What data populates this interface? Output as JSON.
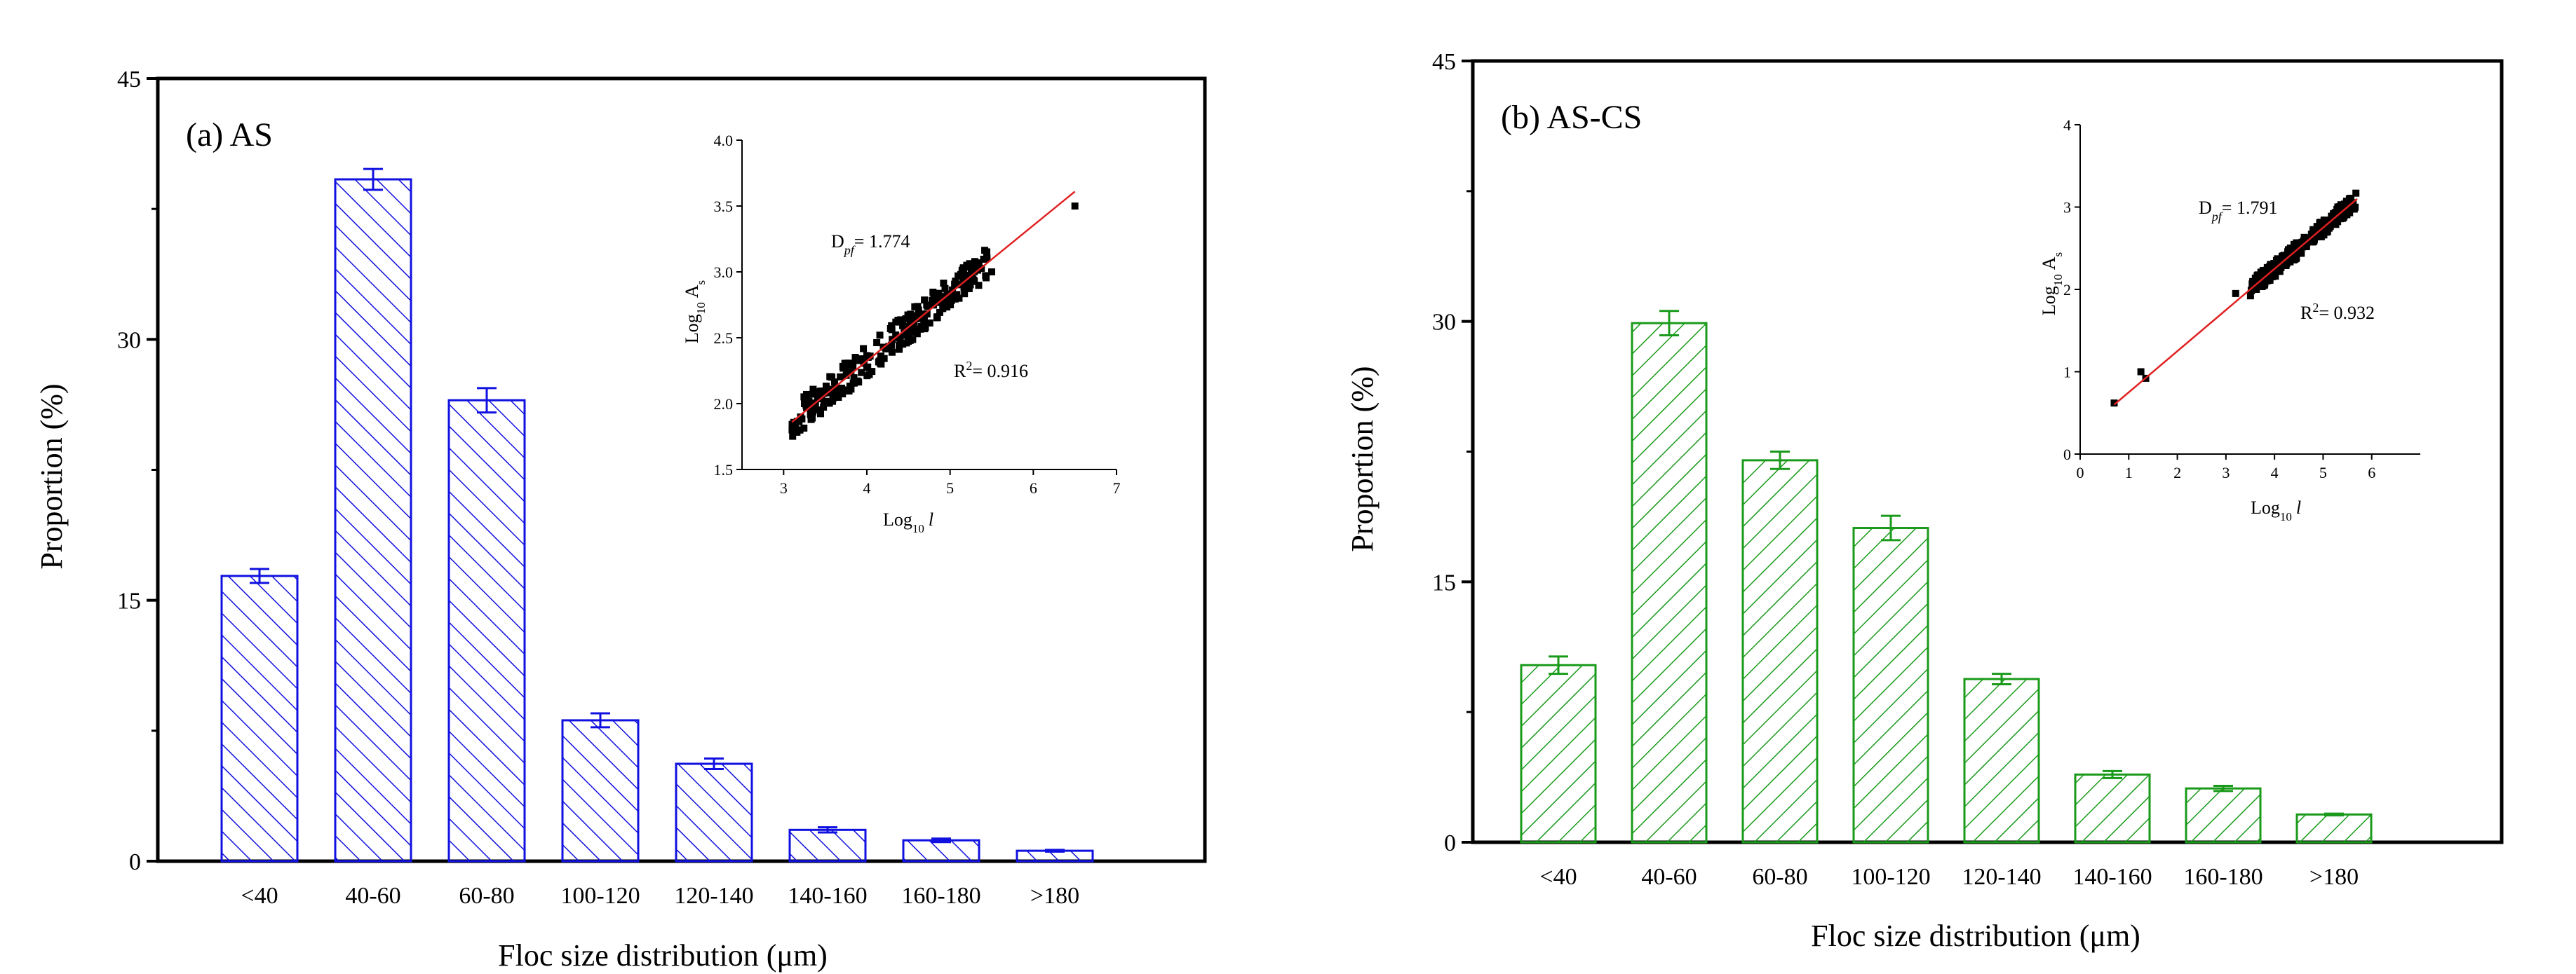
{
  "chart_data": [
    {
      "type": "bar",
      "panel_label": "(a) AS",
      "xlabel": "Floc size distribution (μm)",
      "ylabel": "Proportion (%)",
      "categories": [
        "<40",
        "40-60",
        "60-80",
        "100-120",
        "120-140",
        "140-160",
        "160-180",
        ">180"
      ],
      "values": [
        16.4,
        39.2,
        26.5,
        8.1,
        5.6,
        1.8,
        1.2,
        0.6
      ],
      "errors": [
        0.4,
        0.6,
        0.7,
        0.4,
        0.3,
        0.15,
        0.1,
        0.05
      ],
      "ylim": [
        0,
        45
      ],
      "yticks": [
        0,
        15,
        30,
        45
      ],
      "color": "#1010e0",
      "hatch": "forward",
      "inset": {
        "type": "scatter",
        "xlabel_base": "Log",
        "xlabel_sub": "10",
        "xlabel_var": "l",
        "ylabel_base": "Log",
        "ylabel_sub": "10",
        "ylabel_var": "A",
        "ylabel_var_sub": "s",
        "xlim": [
          2.5,
          7
        ],
        "ylim": [
          1.5,
          4.0
        ],
        "xticks": [
          "3",
          "4",
          "5",
          "6",
          "7"
        ],
        "yticks": [
          "1.5",
          "2.0",
          "2.5",
          "3.0",
          "3.5",
          "4.0"
        ],
        "fit_line": {
          "x": [
            3.1,
            6.5
          ],
          "y": [
            1.86,
            3.61
          ]
        },
        "cluster": {
          "x_range": [
            3.1,
            5.45
          ],
          "spread": 0.12
        },
        "outliers": [
          [
            6.5,
            3.5
          ],
          [
            5.5,
            3.0
          ],
          [
            5.2,
            3.05
          ]
        ],
        "df_label": "D",
        "df_sub": "pf",
        "df_value": "= 1.774",
        "r2_label": "R",
        "r2_sup": "2",
        "r2_value": "= 0.916",
        "line_color": "#e02020"
      }
    },
    {
      "type": "bar",
      "panel_label": "(b) AS-CS",
      "xlabel": "Floc size distribution (μm)",
      "ylabel": "Proportion (%)",
      "categories": [
        "<40",
        "40-60",
        "60-80",
        "100-120",
        "120-140",
        "140-160",
        "160-180",
        ">180"
      ],
      "values": [
        10.2,
        29.9,
        22.0,
        18.1,
        9.4,
        3.9,
        3.1,
        1.6
      ],
      "errors": [
        0.5,
        0.7,
        0.5,
        0.7,
        0.3,
        0.2,
        0.15,
        0.05
      ],
      "ylim": [
        0,
        45
      ],
      "yticks": [
        0,
        15,
        30,
        45
      ],
      "color": "#1a9a1a",
      "hatch": "backward",
      "inset": {
        "type": "scatter",
        "xlabel_base": "Log",
        "xlabel_sub": "10",
        "xlabel_var": "l",
        "ylabel_base": "Log",
        "ylabel_sub": "10",
        "ylabel_var": "A",
        "ylabel_var_sub": "s",
        "xlim": [
          0,
          7
        ],
        "ylim": [
          0,
          4
        ],
        "xticks": [
          "0",
          "1",
          "2",
          "3",
          "4",
          "5",
          "6"
        ],
        "yticks": [
          "0",
          "1",
          "2",
          "3",
          "4"
        ],
        "fit_line": {
          "x": [
            0.7,
            5.7
          ],
          "y": [
            0.6,
            3.1
          ]
        },
        "cluster": {
          "x_range": [
            3.5,
            5.7
          ],
          "spread": 0.1
        },
        "outliers": [
          [
            0.7,
            0.62
          ],
          [
            1.25,
            1.0
          ],
          [
            1.35,
            0.92
          ],
          [
            3.2,
            1.95
          ]
        ],
        "df_label": "D",
        "df_sub": "pf",
        "df_value": "= 1.791",
        "r2_label": "R",
        "r2_sup": "2",
        "r2_value": "= 0.932",
        "line_color": "#e02020"
      }
    }
  ]
}
